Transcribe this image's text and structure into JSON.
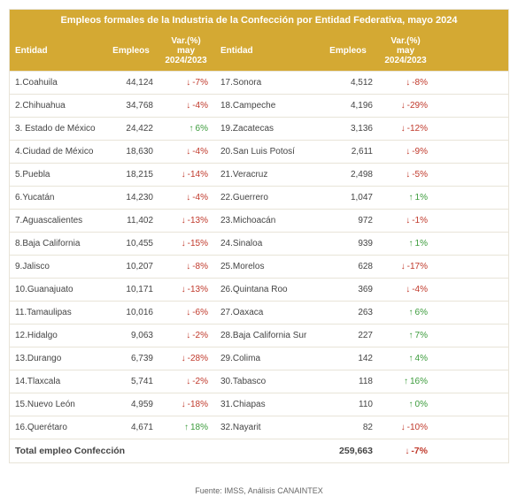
{
  "title": "Empleos formales de la Industria de la Confección por Entidad Federativa, mayo 2024",
  "headers": {
    "entidad": "Entidad",
    "empleos": "Empleos",
    "var": "Var.(%) may 2024/2023"
  },
  "left": [
    {
      "n": "1.Coahuila",
      "e": "44,124",
      "v": "-7%",
      "d": "down"
    },
    {
      "n": "2.Chihuahua",
      "e": "34,768",
      "v": "-4%",
      "d": "down"
    },
    {
      "n": "3. Estado de México",
      "e": "24,422",
      "v": "6%",
      "d": "up"
    },
    {
      "n": "4.Ciudad de México",
      "e": "18,630",
      "v": "-4%",
      "d": "down"
    },
    {
      "n": "5.Puebla",
      "e": "18,215",
      "v": "-14%",
      "d": "down"
    },
    {
      "n": "6.Yucatán",
      "e": "14,230",
      "v": "-4%",
      "d": "down"
    },
    {
      "n": "7.Aguascalientes",
      "e": "11,402",
      "v": "-13%",
      "d": "down"
    },
    {
      "n": "8.Baja California",
      "e": "10,455",
      "v": "-15%",
      "d": "down"
    },
    {
      "n": "9.Jalisco",
      "e": "10,207",
      "v": "-8%",
      "d": "down"
    },
    {
      "n": "10.Guanajuato",
      "e": "10,171",
      "v": "-13%",
      "d": "down"
    },
    {
      "n": "11.Tamaulipas",
      "e": "10,016",
      "v": "-6%",
      "d": "down"
    },
    {
      "n": "12.Hidalgo",
      "e": "9,063",
      "v": "-2%",
      "d": "down"
    },
    {
      "n": "13.Durango",
      "e": "6,739",
      "v": "-28%",
      "d": "down"
    },
    {
      "n": "14.Tlaxcala",
      "e": "5,741",
      "v": "-2%",
      "d": "down"
    },
    {
      "n": "15.Nuevo León",
      "e": "4,959",
      "v": "-18%",
      "d": "down"
    },
    {
      "n": "16.Querétaro",
      "e": "4,671",
      "v": "18%",
      "d": "up"
    }
  ],
  "right": [
    {
      "n": "17.Sonora",
      "e": "4,512",
      "v": "-8%",
      "d": "down"
    },
    {
      "n": "18.Campeche",
      "e": "4,196",
      "v": "-29%",
      "d": "down"
    },
    {
      "n": "19.Zacatecas",
      "e": "3,136",
      "v": "-12%",
      "d": "down"
    },
    {
      "n": "20.San Luis Potosí",
      "e": "2,611",
      "v": "-9%",
      "d": "down"
    },
    {
      "n": "21.Veracruz",
      "e": "2,498",
      "v": "-5%",
      "d": "down"
    },
    {
      "n": "22.Guerrero",
      "e": "1,047",
      "v": "1%",
      "d": "up"
    },
    {
      "n": "23.Michoacán",
      "e": "972",
      "v": "-1%",
      "d": "down"
    },
    {
      "n": "24.Sinaloa",
      "e": "939",
      "v": "1%",
      "d": "up"
    },
    {
      "n": "25.Morelos",
      "e": "628",
      "v": "-17%",
      "d": "down"
    },
    {
      "n": "26.Quintana Roo",
      "e": "369",
      "v": "-4%",
      "d": "down"
    },
    {
      "n": "27.Oaxaca",
      "e": "263",
      "v": "6%",
      "d": "up"
    },
    {
      "n": "28.Baja California Sur",
      "e": "227",
      "v": "7%",
      "d": "up"
    },
    {
      "n": "29.Colima",
      "e": "142",
      "v": "4%",
      "d": "up"
    },
    {
      "n": "30.Tabasco",
      "e": "118",
      "v": "16%",
      "d": "up"
    },
    {
      "n": "31.Chiapas",
      "e": "110",
      "v": "0%",
      "d": "up"
    },
    {
      "n": "32.Nayarit",
      "e": "82",
      "v": "-10%",
      "d": "down"
    }
  ],
  "total": {
    "label": "Total empleo Confección",
    "value": "259,663",
    "var": "-7%",
    "d": "down"
  },
  "source": "Fuente: IMSS, Análisis CANAINTEX",
  "colors": {
    "header_bg": "#d4a933",
    "up": "#3b9b3b",
    "down": "#c0392b",
    "border": "#e8e4d8"
  }
}
